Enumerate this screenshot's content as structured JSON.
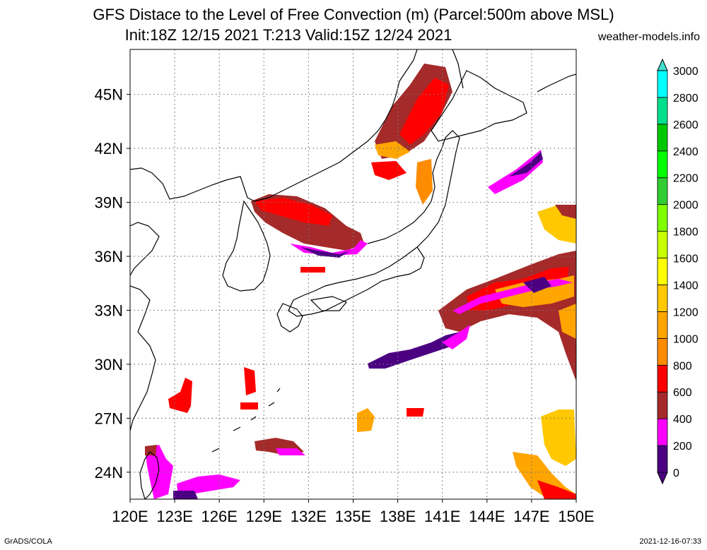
{
  "title": {
    "line1": "GFS Distace to the Level of Free Convection (m) (Parcel:500m above MSL)",
    "line2": "Init:18Z 12/15 2021 T:213 Valid:15Z 12/24 2021"
  },
  "source": "weather-models.info",
  "footer": {
    "left": "GrADS/COLA",
    "right": "2021-12-16-07:33"
  },
  "map": {
    "lon_range": [
      120,
      150
    ],
    "lat_range": [
      22.5,
      47.5
    ],
    "lon_ticks": [
      "120E",
      "123E",
      "126E",
      "129E",
      "132E",
      "135E",
      "138E",
      "141E",
      "144E",
      "147E",
      "150E"
    ],
    "lat_ticks": [
      "24N",
      "27N",
      "30N",
      "33N",
      "36N",
      "39N",
      "42N",
      "45N"
    ],
    "grid": "dotted"
  },
  "legend": {
    "levels": [
      "0",
      "200",
      "400",
      "600",
      "800",
      "1000",
      "1200",
      "1400",
      "1600",
      "1800",
      "2000",
      "2200",
      "2400",
      "2600",
      "2800",
      "3000"
    ],
    "colors": [
      "#4b0082",
      "#ff00ff",
      "#a52a2a",
      "#ff0000",
      "#ff8c00",
      "#ffa500",
      "#ffc800",
      "#ffff00",
      "#c8ff00",
      "#7fff00",
      "#32cd32",
      "#00ff00",
      "#00c800",
      "#00e08c",
      "#00ffff",
      "#40e0d0"
    ]
  }
}
